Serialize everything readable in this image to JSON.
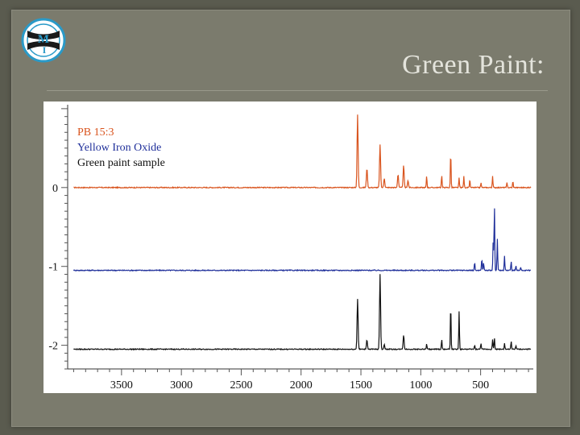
{
  "slide": {
    "title": "Green Paint:",
    "logo_letters": [
      "M",
      "I"
    ]
  },
  "colors": {
    "background": "#7b7b6d",
    "title": "#e4e4dc",
    "logo_ring": "#2a9ac8"
  },
  "chart_data": {
    "type": "line",
    "title": "",
    "xlabel": "",
    "ylabel": "",
    "x_ticks": [
      3500,
      3000,
      2500,
      2000,
      1500,
      1000,
      500
    ],
    "y_ticks": [
      0,
      -1,
      -2
    ],
    "xlim": [
      3950,
      60
    ],
    "ylim": [
      -2.3,
      1.05
    ],
    "legend_position": "top-left",
    "grid": false,
    "series": [
      {
        "name": "PB  15:3",
        "color": "#d9541e",
        "baseline": 0.0,
        "peaks": [
          [
            1528,
            0.92
          ],
          [
            1450,
            0.25
          ],
          [
            1340,
            0.55
          ],
          [
            1305,
            0.12
          ],
          [
            1190,
            0.17
          ],
          [
            1143,
            0.28
          ],
          [
            1107,
            0.09
          ],
          [
            951,
            0.15
          ],
          [
            825,
            0.16
          ],
          [
            750,
            0.46
          ],
          [
            680,
            0.12
          ],
          [
            640,
            0.14
          ],
          [
            590,
            0.1
          ],
          [
            497,
            0.06
          ],
          [
            400,
            0.14
          ],
          [
            280,
            0.06
          ],
          [
            230,
            0.08
          ]
        ]
      },
      {
        "name": "Yellow Iron Oxide",
        "color": "#1f2f9a",
        "baseline": -1.05,
        "peaks": [
          [
            550,
            0.1
          ],
          [
            490,
            0.15
          ],
          [
            475,
            0.1
          ],
          [
            395,
            0.38
          ],
          [
            385,
            0.83
          ],
          [
            360,
            0.4
          ],
          [
            300,
            0.18
          ],
          [
            245,
            0.12
          ],
          [
            205,
            0.06
          ],
          [
            165,
            0.04
          ]
        ]
      },
      {
        "name": "Green paint sample",
        "color": "#111111",
        "baseline": -2.05,
        "peaks": [
          [
            1528,
            0.64
          ],
          [
            1450,
            0.12
          ],
          [
            1340,
            0.95
          ],
          [
            1305,
            0.06
          ],
          [
            1143,
            0.18
          ],
          [
            951,
            0.07
          ],
          [
            825,
            0.12
          ],
          [
            750,
            0.58
          ],
          [
            680,
            0.48
          ],
          [
            550,
            0.05
          ],
          [
            497,
            0.08
          ],
          [
            400,
            0.12
          ],
          [
            385,
            0.15
          ],
          [
            300,
            0.08
          ],
          [
            245,
            0.1
          ],
          [
            205,
            0.05
          ]
        ]
      }
    ]
  }
}
